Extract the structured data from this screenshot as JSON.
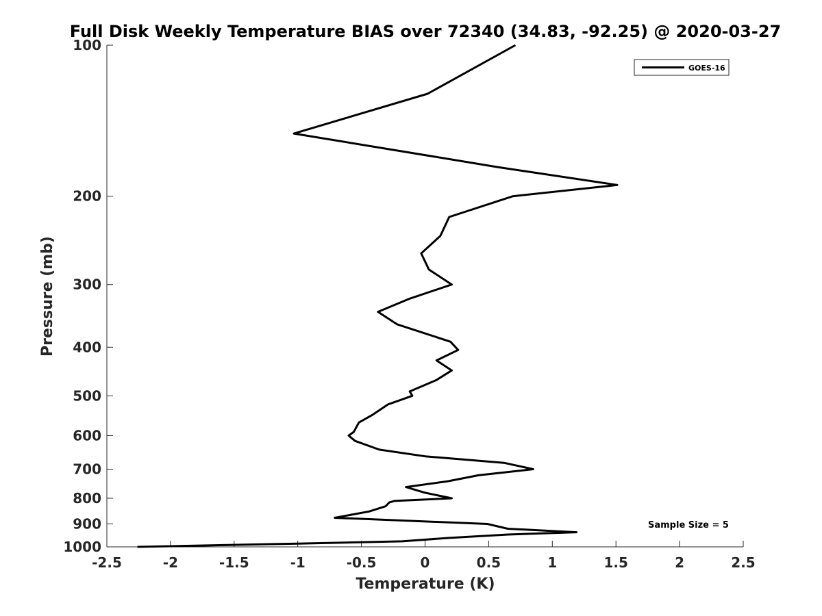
{
  "chart_data": {
    "type": "line",
    "title": "Full Disk Weekly Temperature BIAS over 72340 (34.83, -92.25) @ 2020-03-27",
    "xlabel": "Temperature (K)",
    "ylabel": "Pressure (mb)",
    "xlim": [
      -2.5,
      2.5
    ],
    "ylim": [
      100,
      1000
    ],
    "y_scale": "log",
    "y_reversed": true,
    "x_ticks": [
      -2.5,
      -2,
      -1.5,
      -1,
      -0.5,
      0,
      0.5,
      1,
      1.5,
      2,
      2.5
    ],
    "x_tick_labels": [
      "-2.5",
      "-2",
      "-1.5",
      "-1",
      "-0.5",
      "0",
      "0.5",
      "1",
      "1.5",
      "2",
      "2.5"
    ],
    "y_ticks": [
      100,
      200,
      300,
      400,
      500,
      600,
      700,
      800,
      900,
      1000
    ],
    "y_tick_labels": [
      "100",
      "200",
      "300",
      "400",
      "500",
      "600",
      "700",
      "800",
      "900",
      "1000"
    ],
    "grid": false,
    "legend_position": "top-right",
    "series": [
      {
        "name": "GOES-16",
        "color": "#000000",
        "points": [
          {
            "x": 0.71,
            "p": 100
          },
          {
            "x": 0.02,
            "p": 125
          },
          {
            "x": -1.03,
            "p": 150
          },
          {
            "x": 0.57,
            "p": 175
          },
          {
            "x": 1.51,
            "p": 190
          },
          {
            "x": 0.69,
            "p": 200
          },
          {
            "x": 0.19,
            "p": 220
          },
          {
            "x": 0.12,
            "p": 240
          },
          {
            "x": -0.03,
            "p": 260
          },
          {
            "x": 0.03,
            "p": 280
          },
          {
            "x": 0.21,
            "p": 300
          },
          {
            "x": -0.12,
            "p": 320
          },
          {
            "x": -0.37,
            "p": 340
          },
          {
            "x": -0.22,
            "p": 360
          },
          {
            "x": 0.2,
            "p": 390
          },
          {
            "x": 0.26,
            "p": 405
          },
          {
            "x": 0.09,
            "p": 425
          },
          {
            "x": 0.21,
            "p": 445
          },
          {
            "x": 0.09,
            "p": 465
          },
          {
            "x": -0.12,
            "p": 490
          },
          {
            "x": -0.1,
            "p": 500
          },
          {
            "x": -0.29,
            "p": 520
          },
          {
            "x": -0.41,
            "p": 545
          },
          {
            "x": -0.52,
            "p": 565
          },
          {
            "x": -0.56,
            "p": 590
          },
          {
            "x": -0.6,
            "p": 600
          },
          {
            "x": -0.55,
            "p": 615
          },
          {
            "x": -0.36,
            "p": 640
          },
          {
            "x": 0.0,
            "p": 660
          },
          {
            "x": 0.62,
            "p": 680
          },
          {
            "x": 0.85,
            "p": 700
          },
          {
            "x": 0.42,
            "p": 720
          },
          {
            "x": 0.18,
            "p": 740
          },
          {
            "x": -0.15,
            "p": 760
          },
          {
            "x": 0.0,
            "p": 780
          },
          {
            "x": 0.21,
            "p": 800
          },
          {
            "x": -0.24,
            "p": 810
          },
          {
            "x": -0.28,
            "p": 815
          },
          {
            "x": -0.31,
            "p": 830
          },
          {
            "x": -0.44,
            "p": 850
          },
          {
            "x": -0.71,
            "p": 875
          },
          {
            "x": 0.49,
            "p": 900
          },
          {
            "x": 0.65,
            "p": 920
          },
          {
            "x": 1.19,
            "p": 935
          },
          {
            "x": 0.65,
            "p": 945
          },
          {
            "x": 0.18,
            "p": 960
          },
          {
            "x": -0.18,
            "p": 975
          },
          {
            "x": -1.0,
            "p": 985
          },
          {
            "x": -2.26,
            "p": 1000
          }
        ]
      }
    ],
    "annotations": [
      "Sample Size = 5"
    ]
  }
}
